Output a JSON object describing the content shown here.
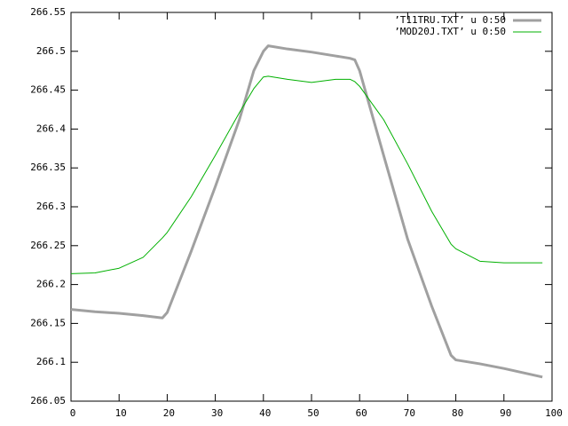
{
  "chart_data": {
    "type": "line",
    "x": [
      0,
      5,
      10,
      15,
      19,
      20,
      25,
      30,
      35,
      38,
      40,
      41,
      45,
      50,
      55,
      58,
      59,
      60,
      65,
      70,
      75,
      79,
      80,
      85,
      90,
      98
    ],
    "series": [
      {
        "name": "’T11TRU.TXT’ u 0:50",
        "color": "#a0a0a0",
        "width": 3,
        "values": [
          266.168,
          266.165,
          266.163,
          266.16,
          266.157,
          266.164,
          266.243,
          266.326,
          266.412,
          266.475,
          266.5,
          266.507,
          266.503,
          266.499,
          266.494,
          266.491,
          266.489,
          266.475,
          266.366,
          266.258,
          266.172,
          266.109,
          266.103,
          266.098,
          266.092,
          266.081
        ]
      },
      {
        "name": "’MOD20J.TXT’ u 0:50",
        "color": "#00b000",
        "width": 1,
        "values": [
          266.214,
          266.215,
          266.221,
          266.235,
          266.26,
          266.267,
          266.313,
          266.366,
          266.421,
          266.452,
          266.467,
          266.468,
          266.464,
          266.46,
          266.464,
          266.464,
          266.461,
          266.455,
          266.412,
          266.355,
          266.294,
          266.252,
          266.246,
          266.23,
          266.228,
          266.228
        ]
      }
    ],
    "xlim": [
      0,
      100
    ],
    "xticks": [
      0,
      10,
      20,
      30,
      40,
      50,
      60,
      70,
      80,
      90,
      100
    ],
    "ylim": [
      266.05,
      266.55
    ],
    "yticks": [
      266.05,
      266.1,
      266.15,
      266.2,
      266.25,
      266.3,
      266.35,
      266.4,
      266.45,
      266.5,
      266.55
    ],
    "legend": "top-right"
  }
}
